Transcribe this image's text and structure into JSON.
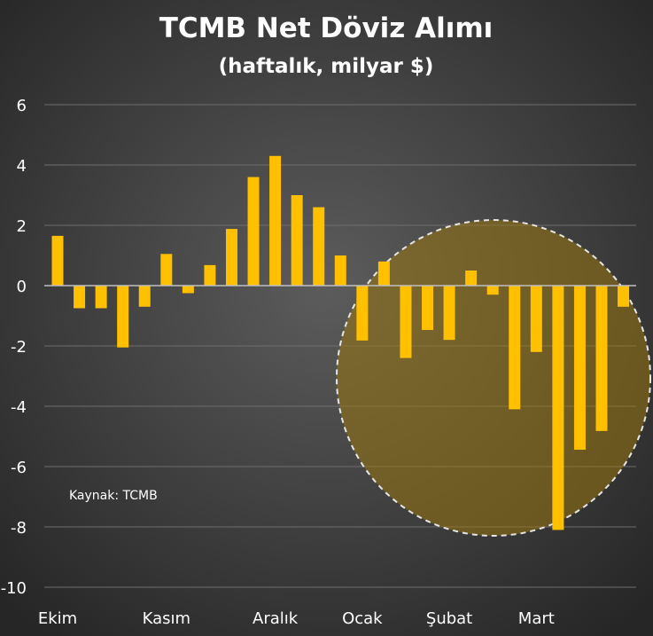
{
  "chart_data": {
    "type": "bar",
    "title": "TCMB Net Döviz Alımı",
    "subtitle": "(haftalık, milyar $)",
    "source_note": "Kaynak: TCMB",
    "xlabel": "",
    "ylabel": "",
    "ylim": [
      -10,
      6
    ],
    "yticks": [
      6,
      4,
      2,
      0,
      -2,
      -4,
      -6,
      -8,
      -10
    ],
    "grid": true,
    "bar_color": "#FFC000",
    "highlight_color": "#8a6a10",
    "month_labels": [
      {
        "label": "Ekim",
        "at_bar": 0
      },
      {
        "label": "Kasım",
        "at_bar": 5
      },
      {
        "label": "Aralık",
        "at_bar": 10
      },
      {
        "label": "Ocak",
        "at_bar": 14
      },
      {
        "label": "Şubat",
        "at_bar": 18
      },
      {
        "label": "Mart",
        "at_bar": 22
      }
    ],
    "values": [
      1.65,
      -0.75,
      -0.75,
      -2.05,
      -0.7,
      1.05,
      -0.25,
      0.68,
      1.88,
      3.6,
      4.3,
      3.0,
      2.6,
      1.0,
      -1.82,
      0.8,
      -2.4,
      -1.47,
      -1.8,
      0.5,
      -0.3,
      -4.1,
      -2.2,
      -8.1,
      -5.44,
      -4.82,
      -0.7
    ],
    "highlight_range_bars": [
      14,
      26
    ]
  }
}
